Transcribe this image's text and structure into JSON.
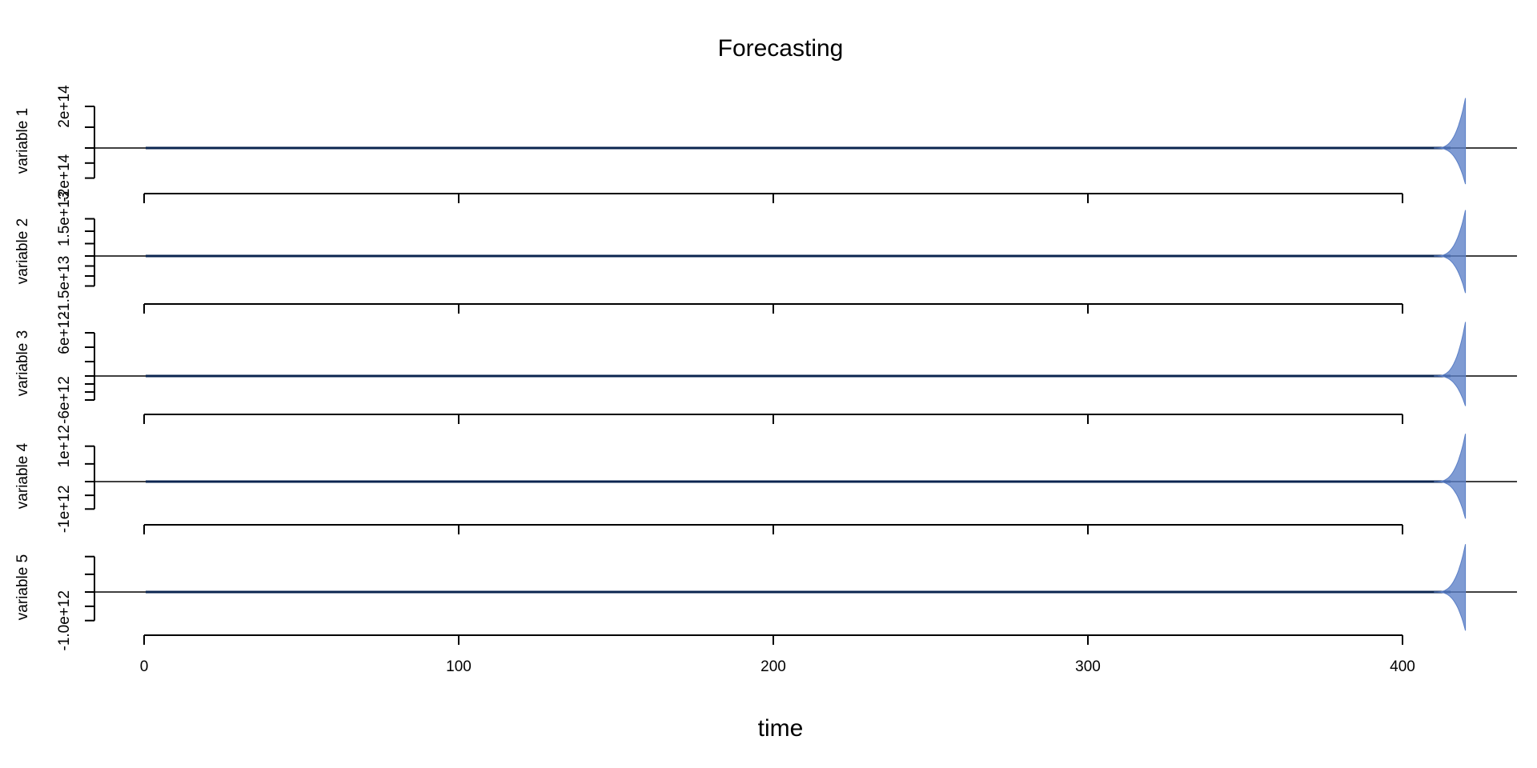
{
  "chart_data": {
    "type": "line",
    "title": "Forecasting",
    "xlabel": "time",
    "x_axis": {
      "range": [
        0,
        420
      ],
      "ticks": [
        0,
        100,
        200,
        300,
        400
      ],
      "tick_labels": [
        "0",
        "100",
        "200",
        "300",
        "400"
      ]
    },
    "forecast": {
      "start": 400,
      "end": 420,
      "color": "#5b7fc6"
    },
    "series_color": "#0b2550",
    "panels": [
      {
        "ylabel": "variable 1",
        "ylim": [
          -250000000000000.0,
          250000000000000.0
        ],
        "ticks": [
          -200000000000000.0,
          -100000000000000.0,
          0,
          100000000000000.0,
          200000000000000.0
        ],
        "tick_labels": [
          "-2e+14",
          "",
          "",
          "",
          "2e+14"
        ],
        "band_max": 240000000000000.0
      },
      {
        "ylabel": "variable 2",
        "ylim": [
          -20000000000000.0,
          20000000000000.0
        ],
        "ticks": [
          -15000000000000.0,
          -10000000000000.0,
          -5000000000000.0,
          0,
          5000000000000.0,
          10000000000000.0,
          15000000000000.0
        ],
        "tick_labels": [
          "-1.5e+13",
          "",
          "",
          "",
          "",
          "",
          "1.5e+13"
        ],
        "band_max": 18500000000000.0
      },
      {
        "ylabel": "variable 3",
        "ylim": [
          -8000000000000.0,
          8000000000000.0
        ],
        "ticks": [
          -6000000000000.0,
          -4000000000000.0,
          -2000000000000.0,
          0,
          2000000000000.0,
          4000000000000.0,
          6000000000000.0
        ],
        "tick_labels": [
          "-6e+12",
          "",
          "",
          "",
          "",
          "",
          "6e+12"
        ],
        "band_max": 7500000000000.0
      },
      {
        "ylabel": "variable 4",
        "ylim": [
          -1400000000000.0,
          1400000000000.0
        ],
        "ticks": [
          -1000000000000.0,
          -500000000000.0,
          0,
          500000000000.0,
          1000000000000.0
        ],
        "tick_labels": [
          "-1e+12",
          "",
          "",
          "",
          "1e+12"
        ],
        "band_max": 1350000000000.0
      },
      {
        "ylabel": "variable 5",
        "ylim": [
          -1400000000000.0,
          1400000000000.0
        ],
        "ticks": [
          -1000000000000.0,
          -500000000000.0,
          0,
          500000000000.0,
          1000000000000.0
        ],
        "tick_labels": [
          "-1.0e+12",
          "",
          "",
          "",
          ""
        ],
        "band_max": 1350000000000.0
      }
    ]
  }
}
